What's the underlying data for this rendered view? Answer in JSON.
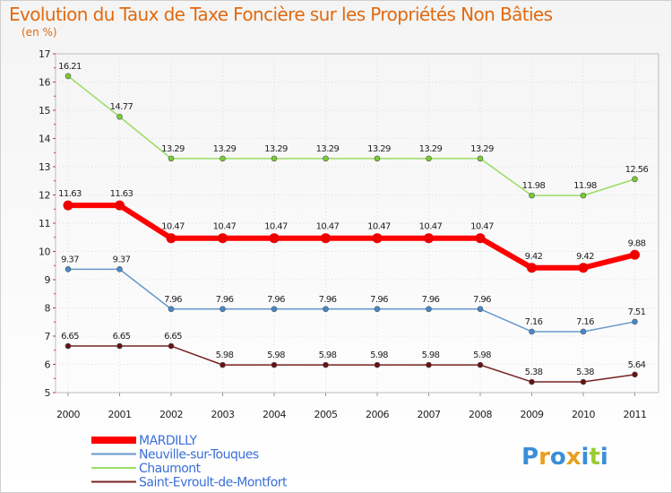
{
  "chart_data": {
    "type": "line",
    "title": "Evolution du Taux de Taxe Foncière sur les Propriétés Non Bâties",
    "subtitle": "(en %)",
    "xlabel": "",
    "ylabel": "",
    "ylim": [
      5,
      17
    ],
    "yticks": [
      "5",
      "6",
      "7",
      "8",
      "9",
      "10",
      "11",
      "12",
      "13",
      "14",
      "15",
      "16",
      "17"
    ],
    "categories": [
      "2000",
      "2001",
      "2002",
      "2003",
      "2004",
      "2005",
      "2006",
      "2007",
      "2008",
      "2009",
      "2010",
      "2011"
    ],
    "series": [
      {
        "name": "Chaumont",
        "color": "#99dd66",
        "marker": "#77cc33",
        "values": [
          16.21,
          14.77,
          13.29,
          13.29,
          13.29,
          13.29,
          13.29,
          13.29,
          13.29,
          11.98,
          11.98,
          12.56
        ],
        "labels": [
          "16.21",
          "14.77",
          "13.29",
          "13.29",
          "13.29",
          "13.29",
          "13.29",
          "13.29",
          "13.29",
          "11.98",
          "11.98",
          "12.56"
        ]
      },
      {
        "name": "MARDILLY",
        "color": "#ff0000",
        "marker": "#ee0000",
        "values": [
          11.63,
          11.63,
          10.47,
          10.47,
          10.47,
          10.47,
          10.47,
          10.47,
          10.47,
          9.42,
          9.42,
          9.88
        ],
        "labels": [
          "11.63",
          "11.63",
          "10.47",
          "10.47",
          "10.47",
          "10.47",
          "10.47",
          "10.47",
          "10.47",
          "9.42",
          "9.42",
          "9.88"
        ]
      },
      {
        "name": "Neuville-sur-Touques",
        "color": "#6699cc",
        "marker": "#4488cc",
        "values": [
          9.37,
          9.37,
          7.96,
          7.96,
          7.96,
          7.96,
          7.96,
          7.96,
          7.96,
          7.16,
          7.16,
          7.51
        ],
        "labels": [
          "9.37",
          "9.37",
          "7.96",
          "7.96",
          "7.96",
          "7.96",
          "7.96",
          "7.96",
          "7.96",
          "7.16",
          "7.16",
          "7.51"
        ]
      },
      {
        "name": "Saint-Evroult-de-Montfort",
        "color": "#772222",
        "marker": "#661111",
        "values": [
          6.65,
          6.65,
          6.65,
          5.98,
          5.98,
          5.98,
          5.98,
          5.98,
          5.98,
          5.38,
          5.38,
          5.64
        ],
        "labels": [
          "6.65",
          "6.65",
          "6.65",
          "5.98",
          "5.98",
          "5.98",
          "5.98",
          "5.98",
          "5.98",
          "5.38",
          "5.38",
          "5.64"
        ]
      }
    ],
    "legend": [
      {
        "name": "MARDILLY",
        "color": "#ff0000"
      },
      {
        "name": "Neuville-sur-Touques",
        "color": "#6699cc"
      },
      {
        "name": "Chaumont",
        "color": "#99dd66"
      },
      {
        "name": "Saint-Evroult-de-Montfort",
        "color": "#772222"
      }
    ],
    "legend_position": "bottom-left"
  },
  "branding": {
    "logo_text": "Proxiti",
    "letters": [
      "P",
      "r",
      "o",
      "x",
      "i",
      "t",
      "i"
    ],
    "letter_colors": [
      "#3a8fd8",
      "#e8a020",
      "#3a8fd8",
      "#e8a020",
      "#3a8fd8",
      "#99cc33",
      "#3a8fd8"
    ]
  }
}
